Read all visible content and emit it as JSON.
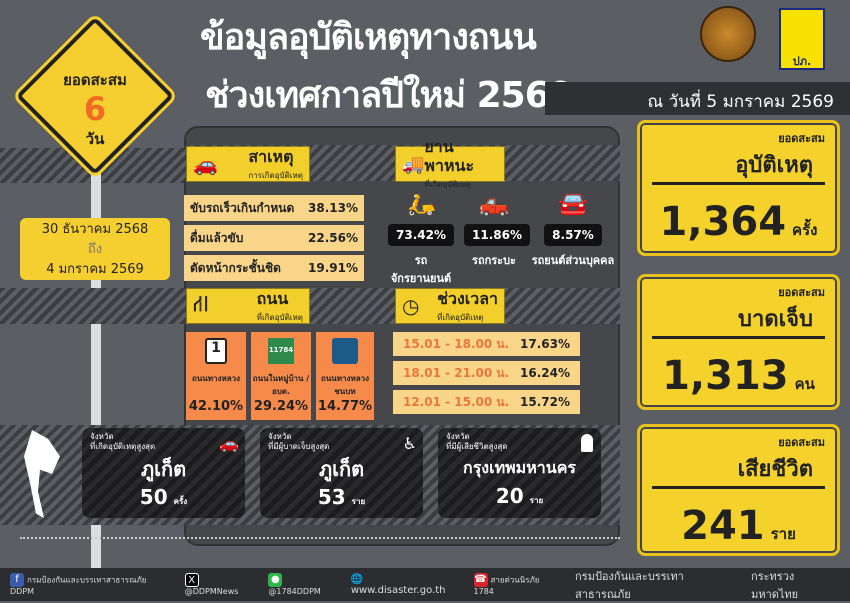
{
  "title": {
    "line1": "ข้อมูลอุบัติเหตุทางถนน",
    "line2": "ช่วงเทศกาลปีใหม่  2569"
  },
  "as_of": "ณ วันที่ 5 มกราคม 2569",
  "logo_seal_text": "กระทรวงมหาดไทย",
  "logo_right_text": "ปภ.",
  "sign": {
    "label": "ยอดสะสม",
    "days": "6",
    "unit": "วัน"
  },
  "period": {
    "from": "30 ธันวาคม 2568",
    "to_word": "ถึง",
    "to": "4 มกราคม 2569"
  },
  "causes": {
    "title": "สาเหตุ",
    "subtitle": "การเกิดอุบัติเหตุ",
    "items": [
      {
        "label": "ขับรถเร็วเกินกำหนด",
        "value": "38.13%"
      },
      {
        "label": "ดื่มแล้วขับ",
        "value": "22.56%"
      },
      {
        "label": "ตัดหน้ากระชั้นชิด",
        "value": "19.91%"
      }
    ]
  },
  "vehicles": {
    "title": "ยานพาหนะ",
    "subtitle": "ที่เกิดอุบัติเหตุ",
    "items": [
      {
        "label": "รถจักรยานยนต์",
        "value": "73.42%",
        "color": "#3aa6dd"
      },
      {
        "label": "รถกระบะ",
        "value": "11.86%",
        "color": "#e0522a"
      },
      {
        "label": "รถยนต์ส่วนบุคคล",
        "value": "8.57%",
        "color": "#bfbfbf"
      }
    ]
  },
  "roads": {
    "title": "ถนน",
    "subtitle": "ที่เกิดอุบัติเหตุ",
    "items": [
      {
        "label": "ถนนทางหลวง",
        "value": "42.10%",
        "sign": "1"
      },
      {
        "label": "ถนนในหมู่บ้าน / อบต.",
        "value": "29.24%",
        "sign": "11784"
      },
      {
        "label": "ถนนทางหลวง ชนบท",
        "value": "14.77%",
        "sign": ""
      }
    ]
  },
  "times": {
    "title": "ช่วงเวลา",
    "subtitle": "ที่เกิดอุบัติเหตุ",
    "items": [
      {
        "range": "15.01 - 18.00 น.",
        "value": "17.63%"
      },
      {
        "range": "18.01 - 21.00 น.",
        "value": "16.24%"
      },
      {
        "range": "12.01 - 15.00 น.",
        "value": "15.72%"
      }
    ]
  },
  "provinces": [
    {
      "l1": "จังหวัด",
      "l2": "ที่เกิดอุบัติเหตุสูงสุด",
      "name": "ภูเก็ต",
      "value": "50",
      "unit": "ครั้ง"
    },
    {
      "l1": "จังหวัด",
      "l2": "ที่มีผู้บาดเจ็บสูงสุด",
      "name": "ภูเก็ต",
      "value": "53",
      "unit": "ราย"
    },
    {
      "l1": "จังหวัด",
      "l2": "ที่มีผู้เสียชีวิตสูงสุด",
      "name": "กรุงเทพมหานคร",
      "value": "20",
      "unit": "ราย"
    }
  ],
  "totals": [
    {
      "label": "ยอดสะสม",
      "title": "อุบัติเหตุ",
      "value": "1,364",
      "unit": "ครั้ง"
    },
    {
      "label": "ยอดสะสม",
      "title": "บาดเจ็บ",
      "value": "1,313",
      "unit": "คน"
    },
    {
      "label": "ยอดสะสม",
      "title": "เสียชีวิต",
      "value": "241",
      "unit": "ราย"
    }
  ],
  "footer": {
    "facebook": "กรมป้องกันและบรรเทาสาธารณภัย DDPM",
    "x": "@DDPMNews",
    "line": "@1784DDPM",
    "web": "www.disaster.go.th",
    "hotline": "สายด่วนนิรภัย 1784",
    "org1": "กรมป้องกันและบรรเทาสาธารณภัย",
    "org2": "กระทรวงมหาดไทย"
  }
}
